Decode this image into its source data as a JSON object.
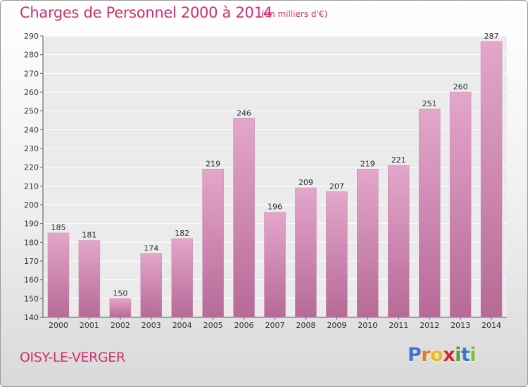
{
  "title": "Charges de Personnel 2000 à 2014",
  "unit_note": "(en milliers d'€)",
  "place": "OISY-LE-VERGER",
  "logo": {
    "letters": [
      "P",
      "r",
      "o",
      "x",
      "i",
      "t",
      "i"
    ],
    "colors": [
      "#3a78c8",
      "#e87a1e",
      "#f0b81a",
      "#cc2a2a",
      "#4aa63c",
      "#3a78c8",
      "#7abf2e"
    ]
  },
  "colors": {
    "bar_top": "#e4a6cb",
    "bar_bottom": "#b66a97",
    "accent": "#d0306e"
  },
  "chart_data": {
    "type": "bar",
    "categories": [
      "2000",
      "2001",
      "2002",
      "2003",
      "2004",
      "2005",
      "2006",
      "2007",
      "2008",
      "2009",
      "2010",
      "2011",
      "2012",
      "2013",
      "2014"
    ],
    "values": [
      185,
      181,
      150,
      174,
      182,
      219,
      246,
      196,
      209,
      207,
      219,
      221,
      251,
      260,
      287
    ],
    "ylim": [
      140,
      290
    ],
    "yticks": [
      140,
      150,
      160,
      170,
      180,
      190,
      200,
      210,
      220,
      230,
      240,
      250,
      260,
      270,
      280,
      290
    ],
    "grid": true,
    "xlabel": "",
    "ylabel": ""
  }
}
